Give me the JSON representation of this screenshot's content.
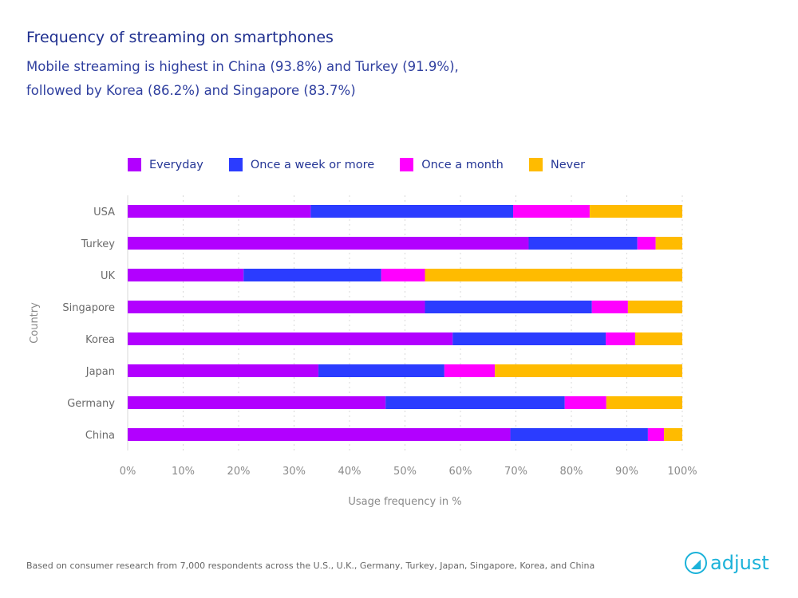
{
  "title": "Frequency of streaming on smartphones",
  "subtitle_line1": "Mobile streaming is highest in China (93.8%) and Turkey (91.9%),",
  "subtitle_line2": "followed by Korea (86.2%) and Singapore (83.7%)",
  "footer": "Based on consumer research from 7,000 respondents across the U.S., U.K., Germany, Turkey, Japan, Singapore, Korea, and China",
  "logo": {
    "text": "adjust",
    "icon": "adjust-logo-icon"
  },
  "chart_data": {
    "type": "bar",
    "orientation": "horizontal",
    "stacked": true,
    "title": "Frequency of streaming on smartphones",
    "xlabel": "Usage frequency in %",
    "ylabel": "Country",
    "xlim": [
      0,
      100
    ],
    "xticks": [
      "0%",
      "10%",
      "20%",
      "30%",
      "40%",
      "50%",
      "60%",
      "70%",
      "80%",
      "90%",
      "100%"
    ],
    "grid": true,
    "legend_position": "top-left",
    "categories": [
      "USA",
      "Turkey",
      "UK",
      "Singapore",
      "Korea",
      "Japan",
      "Germany",
      "China"
    ],
    "series": [
      {
        "name": "Everyday",
        "color": "#b200ff",
        "values": [
          33.0,
          72.3,
          20.9,
          53.6,
          58.6,
          34.4,
          46.5,
          69.0
        ]
      },
      {
        "name": "Once a week or more",
        "color": "#2b3cff",
        "values": [
          36.5,
          19.6,
          24.8,
          30.1,
          27.6,
          22.7,
          32.3,
          24.8
        ]
      },
      {
        "name": "Once a month",
        "color": "#ff00ff",
        "values": [
          13.8,
          3.3,
          7.9,
          6.5,
          5.3,
          9.1,
          7.5,
          2.9
        ]
      },
      {
        "name": "Never",
        "color": "#ffbb00",
        "values": [
          16.7,
          4.8,
          46.4,
          9.8,
          8.5,
          33.8,
          13.7,
          3.3
        ]
      }
    ]
  }
}
